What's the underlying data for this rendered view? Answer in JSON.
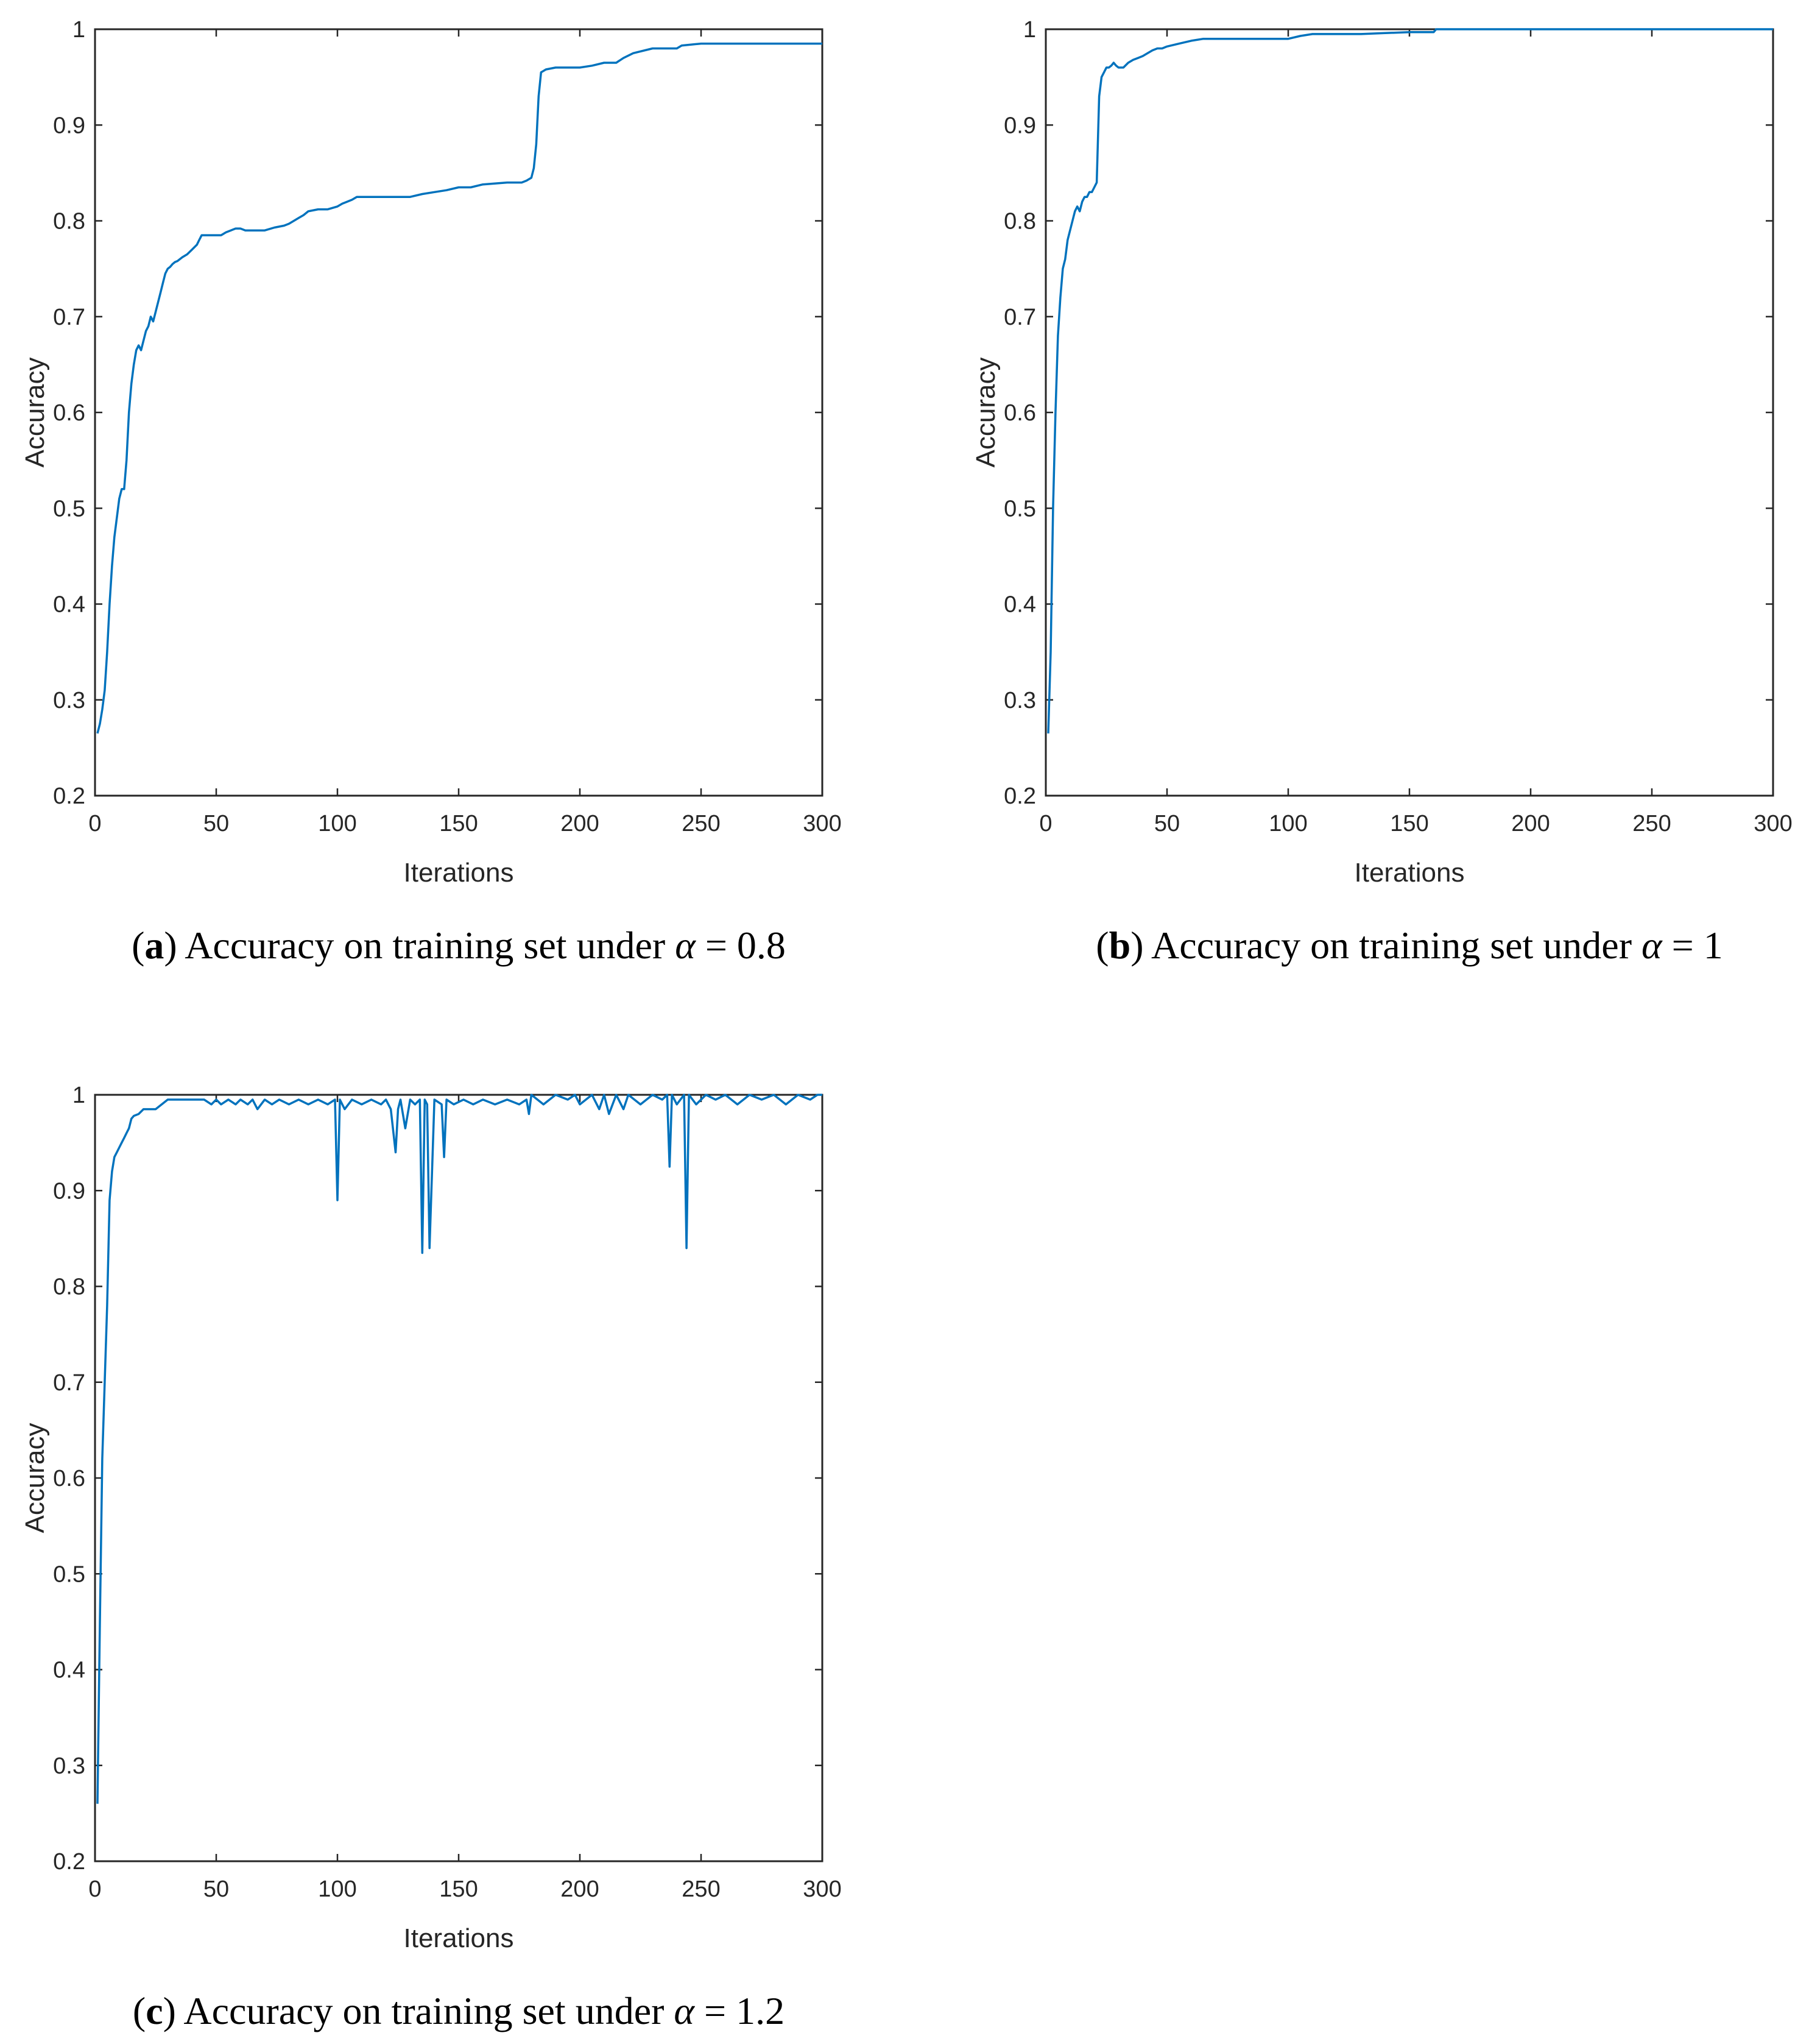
{
  "chart_data": [
    {
      "type": "line",
      "id": "a",
      "caption": {
        "letter": "a",
        "text": "Accuracy on training set under",
        "symbol": "α",
        "equals": "=",
        "value": "0.8"
      },
      "xlabel": "Iterations",
      "ylabel": "Accuracy",
      "xlim": [
        0,
        300
      ],
      "ylim": [
        0.2,
        1
      ],
      "xticks": [
        0,
        50,
        100,
        150,
        200,
        250,
        300
      ],
      "yticks": [
        0.2,
        0.3,
        0.4,
        0.5,
        0.6,
        0.7,
        0.8,
        0.9,
        1
      ],
      "ytick_labels": [
        "0.2",
        "0.3",
        "0.4",
        "0.5",
        "0.6",
        "0.7",
        "0.8",
        "0.9",
        "1"
      ],
      "line_color": "#0072bd",
      "series": [
        {
          "name": "accuracy",
          "x": [
            1,
            2,
            3,
            4,
            5,
            6,
            7,
            8,
            9,
            10,
            11,
            12,
            13,
            14,
            15,
            16,
            17,
            18,
            19,
            20,
            21,
            22,
            23,
            24,
            25,
            26,
            27,
            28,
            29,
            30,
            31,
            32,
            33,
            34,
            35,
            36,
            38,
            40,
            42,
            43,
            44,
            46,
            48,
            50,
            52,
            54,
            56,
            58,
            60,
            62,
            64,
            66,
            70,
            74,
            78,
            80,
            82,
            84,
            86,
            88,
            92,
            96,
            100,
            102,
            104,
            106,
            108,
            110,
            120,
            130,
            135,
            140,
            145,
            150,
            155,
            160,
            170,
            176,
            178,
            180,
            181,
            182,
            183,
            184,
            186,
            190,
            200,
            205,
            210,
            215,
            218,
            222,
            230,
            240,
            242,
            250,
            260,
            270,
            280,
            290,
            300
          ],
          "values": [
            0.265,
            0.275,
            0.29,
            0.31,
            0.35,
            0.4,
            0.44,
            0.47,
            0.49,
            0.51,
            0.52,
            0.52,
            0.55,
            0.6,
            0.63,
            0.65,
            0.665,
            0.67,
            0.665,
            0.675,
            0.685,
            0.69,
            0.7,
            0.695,
            0.705,
            0.715,
            0.725,
            0.735,
            0.745,
            0.75,
            0.752,
            0.755,
            0.757,
            0.758,
            0.76,
            0.762,
            0.765,
            0.77,
            0.775,
            0.78,
            0.785,
            0.785,
            0.785,
            0.785,
            0.785,
            0.788,
            0.79,
            0.792,
            0.792,
            0.79,
            0.79,
            0.79,
            0.79,
            0.793,
            0.795,
            0.797,
            0.8,
            0.803,
            0.806,
            0.81,
            0.812,
            0.812,
            0.815,
            0.818,
            0.82,
            0.822,
            0.825,
            0.825,
            0.825,
            0.825,
            0.828,
            0.83,
            0.832,
            0.835,
            0.835,
            0.838,
            0.84,
            0.84,
            0.842,
            0.845,
            0.855,
            0.88,
            0.93,
            0.955,
            0.958,
            0.96,
            0.96,
            0.962,
            0.965,
            0.965,
            0.97,
            0.975,
            0.98,
            0.98,
            0.983,
            0.985,
            0.985,
            0.985,
            0.985,
            0.985,
            0.985
          ]
        }
      ]
    },
    {
      "type": "line",
      "id": "b",
      "caption": {
        "letter": "b",
        "text": "Accuracy on training set under",
        "symbol": "α",
        "equals": "=",
        "value": "1"
      },
      "xlabel": "Iterations",
      "ylabel": "Accuracy",
      "xlim": [
        0,
        300
      ],
      "ylim": [
        0.2,
        1
      ],
      "xticks": [
        0,
        50,
        100,
        150,
        200,
        250,
        300
      ],
      "yticks": [
        0.2,
        0.3,
        0.4,
        0.5,
        0.6,
        0.7,
        0.8,
        0.9,
        1
      ],
      "ytick_labels": [
        "0.2",
        "0.3",
        "0.4",
        "0.5",
        "0.6",
        "0.7",
        "0.8",
        "0.9",
        "1"
      ],
      "line_color": "#0072bd",
      "series": [
        {
          "name": "accuracy",
          "x": [
            1,
            2,
            3,
            4,
            5,
            6,
            7,
            8,
            9,
            10,
            11,
            12,
            13,
            14,
            15,
            16,
            17,
            18,
            19,
            20,
            21,
            22,
            23,
            24,
            25,
            26,
            27,
            28,
            29,
            30,
            32,
            34,
            36,
            38,
            40,
            42,
            44,
            46,
            48,
            50,
            55,
            60,
            65,
            70,
            80,
            90,
            100,
            105,
            110,
            120,
            130,
            140,
            150,
            160,
            161,
            170,
            200,
            250,
            300
          ],
          "values": [
            0.265,
            0.35,
            0.5,
            0.6,
            0.68,
            0.72,
            0.75,
            0.76,
            0.78,
            0.79,
            0.8,
            0.81,
            0.815,
            0.81,
            0.82,
            0.825,
            0.825,
            0.83,
            0.83,
            0.835,
            0.84,
            0.93,
            0.95,
            0.955,
            0.96,
            0.96,
            0.962,
            0.965,
            0.962,
            0.96,
            0.96,
            0.965,
            0.968,
            0.97,
            0.972,
            0.975,
            0.978,
            0.98,
            0.98,
            0.982,
            0.985,
            0.988,
            0.99,
            0.99,
            0.99,
            0.99,
            0.99,
            0.993,
            0.995,
            0.995,
            0.995,
            0.996,
            0.997,
            0.997,
            1.0,
            1.0,
            1.0,
            1.0,
            1.0
          ]
        }
      ]
    },
    {
      "type": "line",
      "id": "c",
      "caption": {
        "letter": "c",
        "text": "Accuracy on training set under",
        "symbol": "α",
        "equals": "=",
        "value": "1.2"
      },
      "xlabel": "Iterations",
      "ylabel": "Accuracy",
      "xlim": [
        0,
        300
      ],
      "ylim": [
        0.2,
        1
      ],
      "xticks": [
        0,
        50,
        100,
        150,
        200,
        250,
        300
      ],
      "yticks": [
        0.2,
        0.3,
        0.4,
        0.5,
        0.6,
        0.7,
        0.8,
        0.9,
        1
      ],
      "ytick_labels": [
        "0.2",
        "0.3",
        "0.4",
        "0.5",
        "0.6",
        "0.7",
        "0.8",
        "0.9",
        "1"
      ],
      "line_color": "#0072bd",
      "series": [
        {
          "name": "accuracy",
          "x": [
            1,
            2,
            3,
            4,
            5,
            6,
            7,
            8,
            9,
            10,
            11,
            12,
            13,
            14,
            15,
            16,
            18,
            20,
            25,
            30,
            40,
            45,
            48,
            50,
            52,
            55,
            58,
            60,
            63,
            65,
            67,
            70,
            73,
            76,
            80,
            84,
            88,
            92,
            96,
            99,
            100,
            101,
            103,
            106,
            110,
            114,
            118,
            120,
            122,
            124,
            125,
            126,
            128,
            130,
            132,
            134,
            135,
            136,
            137,
            138,
            140,
            143,
            144,
            145,
            148,
            152,
            156,
            160,
            165,
            170,
            175,
            178,
            179,
            180,
            185,
            190,
            195,
            198,
            200,
            205,
            208,
            210,
            212,
            215,
            218,
            220,
            225,
            230,
            234,
            236,
            237,
            238,
            240,
            243,
            244,
            245,
            248,
            252,
            256,
            260,
            265,
            270,
            275,
            280,
            285,
            290,
            295,
            298,
            300
          ],
          "values": [
            0.26,
            0.45,
            0.62,
            0.7,
            0.78,
            0.89,
            0.92,
            0.935,
            0.94,
            0.945,
            0.95,
            0.955,
            0.96,
            0.965,
            0.975,
            0.978,
            0.98,
            0.985,
            0.985,
            0.995,
            0.995,
            0.995,
            0.99,
            0.995,
            0.99,
            0.995,
            0.99,
            0.995,
            0.99,
            0.995,
            0.985,
            0.995,
            0.99,
            0.995,
            0.99,
            0.995,
            0.99,
            0.995,
            0.99,
            0.995,
            0.89,
            0.995,
            0.985,
            0.995,
            0.99,
            0.995,
            0.99,
            0.995,
            0.985,
            0.94,
            0.985,
            0.995,
            0.965,
            0.995,
            0.99,
            0.995,
            0.835,
            0.995,
            0.99,
            0.84,
            0.995,
            0.99,
            0.935,
            0.995,
            0.99,
            0.995,
            0.99,
            0.995,
            0.99,
            0.995,
            0.99,
            0.995,
            0.98,
            1.0,
            0.99,
            1.0,
            0.995,
            1.0,
            0.99,
            1.0,
            0.985,
            1.0,
            0.98,
            1.0,
            0.985,
            1.0,
            0.99,
            1.0,
            0.995,
            1.0,
            0.925,
            1.0,
            0.99,
            1.0,
            0.84,
            1.0,
            0.99,
            1.0,
            0.995,
            1.0,
            0.99,
            1.0,
            0.995,
            1.0,
            0.99,
            1.0,
            0.995,
            1.0,
            1.0
          ]
        }
      ]
    }
  ]
}
